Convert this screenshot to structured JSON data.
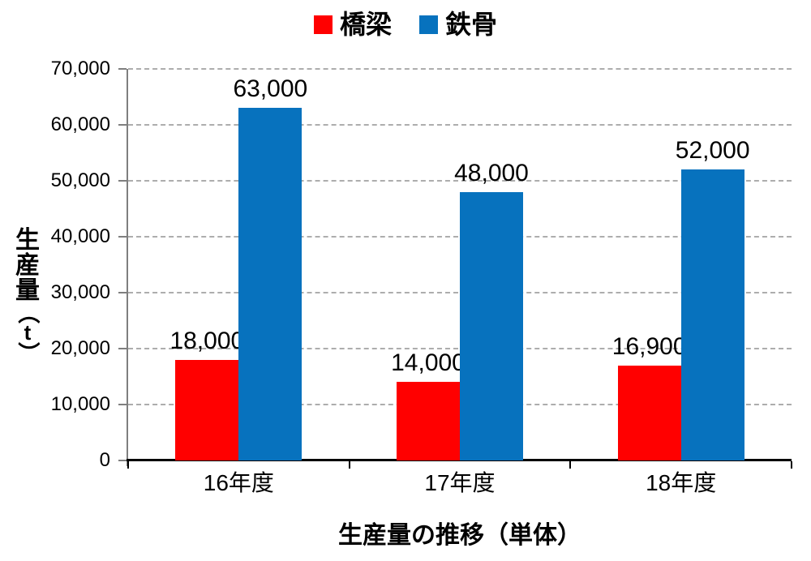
{
  "chart_data": {
    "type": "bar",
    "title": "生産量の推移（単体）",
    "ylabel": "生産量（t）",
    "categories": [
      "16年度",
      "17年度",
      "18年度"
    ],
    "series": [
      {
        "name": "橋梁",
        "color": "#ff0000",
        "values": [
          18000,
          14000,
          16900
        ],
        "data_labels": [
          "18,000",
          "14,000",
          "16,900"
        ]
      },
      {
        "name": "鉄骨",
        "color": "#0772be",
        "values": [
          63000,
          48000,
          52000
        ],
        "data_labels": [
          "63,000",
          "48,000",
          "52,000"
        ]
      }
    ],
    "ylim": [
      0,
      70000
    ],
    "ytick_step": 10000,
    "ytick_labels": [
      "0",
      "10,000",
      "20,000",
      "30,000",
      "40,000",
      "50,000",
      "60,000",
      "70,000"
    ],
    "grid": "horizontal-dashed",
    "legend_position": "top"
  },
  "colors": {
    "gridline": "#adadad",
    "y_axis": "#7f7f7f",
    "x_axis": "#000000",
    "text": "#000000"
  }
}
